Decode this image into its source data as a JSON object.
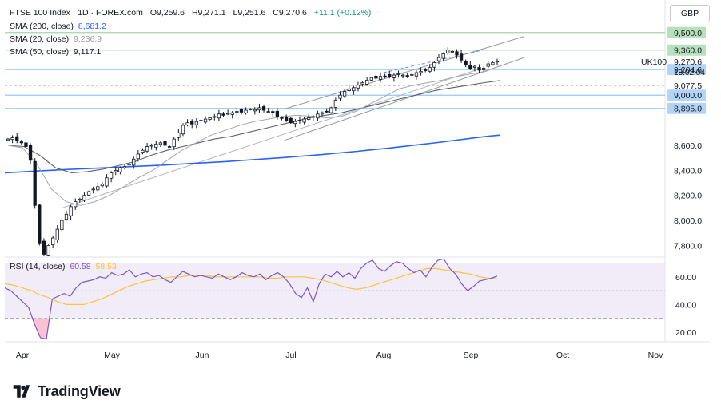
{
  "header": {
    "symbol": "FTSE 100 Index · 1D · FOREX.com",
    "open": "O9,259.6",
    "high": "H9,271.1",
    "low": "L9,251.6",
    "close": "C9,270.6",
    "change": "+11.1 (+0.12%)",
    "currency": "GBP"
  },
  "indicators": {
    "sma200": {
      "label": "SMA (200, close)",
      "value": "8,681.2",
      "color": "#2962ff"
    },
    "sma20": {
      "label": "SMA (20, close)",
      "value": "9,236.9",
      "color": "#9e9e9e"
    },
    "sma50": {
      "label": "SMA (50, close)",
      "value": "9,117.1",
      "color": "#131722"
    },
    "rsi": {
      "label": "RSI (14, close)",
      "value": "60.58",
      "ma_value": "58.53",
      "color": "#7e57c2",
      "ma_color": "#f5c542"
    }
  },
  "footer": {
    "brand": "TradingView"
  },
  "chart_data": [
    {
      "type": "candlestick",
      "title": "FTSE 100 Index · 1D · FOREX.com",
      "x_tick_labels": [
        "Apr",
        "May",
        "Jun",
        "Jul",
        "Aug",
        "Sep",
        "Oct",
        "Nov"
      ],
      "y_tick_labels": [
        "7,800.0",
        "8,000.0",
        "8,200.0",
        "8,400.0",
        "8,600.0",
        "9,500.0"
      ],
      "ylim": [
        7700,
        9580
      ],
      "last_price": {
        "symbol": "UK100",
        "value": "9,270.6",
        "countdown": "13:02:04"
      },
      "horizontal_levels": [
        {
          "value": 9500.0,
          "label": "9,500.0",
          "color": "#a5d6a7",
          "style": "solid"
        },
        {
          "value": 9360.0,
          "label": "9,360.0",
          "color": "#a5d6a7",
          "style": "solid"
        },
        {
          "value": 9204.6,
          "label": "9,204.6",
          "color": "#90caf9",
          "style": "solid"
        },
        {
          "value": 9077.5,
          "label": "9,077.5",
          "color": "#b0b3bb",
          "style": "dashed"
        },
        {
          "value": 9000.0,
          "label": "9,000.0",
          "color": "#90caf9",
          "style": "solid"
        },
        {
          "value": 8895.0,
          "label": "8,895.0",
          "color": "#90caf9",
          "style": "solid"
        }
      ],
      "axis_badge_colors": {
        "green": "#b9e0bd",
        "blue": "#b3d4f5"
      },
      "candles_close": [
        8650,
        8660,
        8640,
        8620,
        8590,
        8480,
        8120,
        7820,
        7730,
        7800,
        7860,
        7930,
        8000,
        8050,
        8110,
        8150,
        8170,
        8200,
        8230,
        8250,
        8270,
        8290,
        8340,
        8380,
        8400,
        8420,
        8430,
        8450,
        8490,
        8530,
        8560,
        8590,
        8600,
        8610,
        8620,
        8600,
        8590,
        8650,
        8700,
        8760,
        8780,
        8770,
        8790,
        8800,
        8810,
        8820,
        8830,
        8850,
        8840,
        8855,
        8860,
        8870,
        8865,
        8880,
        8890,
        8885,
        8900,
        8880,
        8870,
        8860,
        8830,
        8820,
        8800,
        8780,
        8790,
        8800,
        8810,
        8820,
        8830,
        8850,
        8860,
        8870,
        8900,
        8960,
        9000,
        9030,
        9050,
        9060,
        9080,
        9100,
        9120,
        9140,
        9135,
        9150,
        9150,
        9145,
        9160,
        9170,
        9160,
        9150,
        9165,
        9180,
        9190,
        9200,
        9220,
        9260,
        9300,
        9330,
        9360,
        9350,
        9320,
        9280,
        9240,
        9210,
        9230,
        9200,
        9215,
        9250,
        9260,
        9270.6
      ],
      "sma200": [
        8380,
        8385,
        8390,
        8395,
        8400,
        8404,
        8408,
        8412,
        8416,
        8420,
        8424,
        8428,
        8432,
        8436,
        8440,
        8445,
        8450,
        8455,
        8460,
        8465,
        8470,
        8476,
        8482,
        8488,
        8494,
        8500,
        8507,
        8514,
        8521,
        8528,
        8536,
        8544,
        8552,
        8561,
        8570,
        8579,
        8589,
        8599,
        8609,
        8619,
        8630,
        8641,
        8652,
        8663,
        8674,
        8681.2
      ],
      "sma20": [
        8600,
        8580,
        8450,
        8250,
        8150,
        8120,
        8150,
        8200,
        8270,
        8340,
        8400,
        8480,
        8560,
        8620,
        8680,
        8720,
        8760,
        8790,
        8810,
        8830,
        8840,
        8830,
        8820,
        8830,
        8870,
        8930,
        8990,
        9050,
        9080,
        9100,
        9120,
        9150,
        9170,
        9190,
        9236.9
      ],
      "sma50": [
        8600,
        8590,
        8520,
        8420,
        8380,
        8390,
        8410,
        8440,
        8470,
        8520,
        8560,
        8590,
        8620,
        8650,
        8670,
        8700,
        8730,
        8760,
        8790,
        8820,
        8840,
        8860,
        8890,
        8920,
        8950,
        8980,
        9010,
        9040,
        9060,
        9080,
        9100,
        9117.1
      ],
      "channel": [
        {
          "name": "upper",
          "from": 8890,
          "to": 9470
        },
        {
          "name": "lower",
          "from": 8640,
          "to": 9300
        },
        {
          "name": "mid-dashed",
          "from": 9180,
          "to": 9360
        }
      ]
    },
    {
      "type": "line",
      "title": "RSI (14, close)",
      "y_tick_labels": [
        "20.00",
        "40.00",
        "60.00"
      ],
      "ylim": [
        10,
        75
      ],
      "bands": [
        30,
        50,
        70
      ],
      "rsi": [
        52,
        50,
        46,
        42,
        38,
        26,
        16,
        15,
        44,
        46,
        48,
        46,
        52,
        56,
        57,
        58,
        60,
        59,
        63,
        61,
        62,
        65,
        60,
        62,
        63,
        60,
        61,
        58,
        56,
        60,
        64,
        62,
        60,
        61,
        60,
        59,
        62,
        60,
        58,
        60,
        63,
        61,
        60,
        62,
        58,
        61,
        63,
        60,
        55,
        48,
        45,
        52,
        42,
        55,
        62,
        60,
        64,
        60,
        63,
        59,
        66,
        70,
        72,
        66,
        64,
        68,
        71,
        70,
        66,
        63,
        65,
        60,
        67,
        72,
        73,
        66,
        62,
        55,
        50,
        53,
        57,
        58,
        59,
        60.58
      ],
      "rsi_ma": [
        55,
        54,
        52,
        50,
        47,
        45,
        42,
        40,
        40,
        40,
        42,
        44,
        47,
        50,
        53,
        55,
        57,
        58,
        59,
        60,
        60,
        61,
        61,
        61,
        60,
        60,
        60,
        60,
        60,
        60,
        59,
        59,
        60,
        60,
        60,
        59,
        58,
        56,
        54,
        52,
        51,
        52,
        54,
        56,
        58,
        60,
        62,
        64,
        66,
        66,
        65,
        64,
        63,
        62,
        60,
        59,
        58.53
      ]
    }
  ]
}
